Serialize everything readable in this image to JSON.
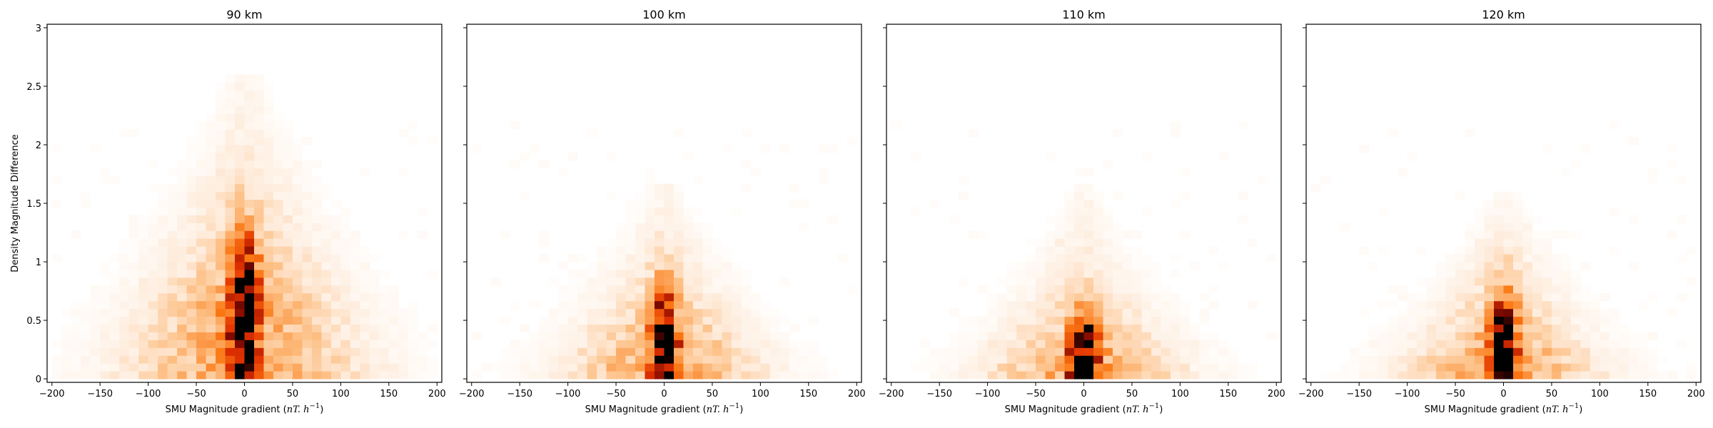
{
  "chart_data": [
    {
      "type": "heatmap",
      "title": "90 km",
      "xlabel": "SMU Magnitude gradient (nT. h⁻¹)",
      "xlabel_main": "SMU Magnitude gradient (",
      "xlabel_math": "nT. h",
      "xlabel_sup": "−1",
      "xlabel_close": ")",
      "ylabel": "Density Magnitude Difference",
      "xlim": [
        -205,
        205
      ],
      "ylim": [
        -0.03,
        3.03
      ],
      "xticks": [
        -200,
        -150,
        -100,
        -50,
        0,
        50,
        100,
        150,
        200
      ],
      "yticks": [
        0.0,
        0.5,
        1.0,
        1.5,
        2.0,
        2.5,
        3.0
      ],
      "ytick_labels_visible": true,
      "colormap": "Oranges-Reds-Black",
      "bins": {
        "x_min": -200,
        "x_max": 200,
        "nx": 40,
        "y_min": 0,
        "y_max": 3,
        "ny": 45
      },
      "distribution": {
        "x_center": 0,
        "core_width": 10,
        "spread_width": 55,
        "y_peak": 0.55,
        "y_spread": 0.45,
        "y_tail": 2.6,
        "intensity": 1.0,
        "seed": 11
      }
    },
    {
      "type": "heatmap",
      "title": "100 km",
      "xlabel": "SMU Magnitude gradient (nT. h⁻¹)",
      "xlabel_main": "SMU Magnitude gradient (",
      "xlabel_math": "nT. h",
      "xlabel_sup": "−1",
      "xlabel_close": ")",
      "ylabel": "",
      "xlim": [
        -205,
        205
      ],
      "ylim": [
        -0.03,
        3.03
      ],
      "xticks": [
        -200,
        -150,
        -100,
        -50,
        0,
        50,
        100,
        150,
        200
      ],
      "yticks": [
        0.0,
        0.5,
        1.0,
        1.5,
        2.0,
        2.5,
        3.0
      ],
      "ytick_labels_visible": false,
      "colormap": "Oranges-Reds-Black",
      "bins": {
        "x_min": -200,
        "x_max": 200,
        "nx": 40,
        "y_min": 0,
        "y_max": 3,
        "ny": 45
      },
      "distribution": {
        "x_center": 0,
        "core_width": 9,
        "spread_width": 45,
        "y_peak": 0.25,
        "y_spread": 0.35,
        "y_tail": 1.7,
        "intensity": 1.0,
        "seed": 23
      }
    },
    {
      "type": "heatmap",
      "title": "110 km",
      "xlabel": "SMU Magnitude gradient (nT. h⁻¹)",
      "xlabel_main": "SMU Magnitude gradient (",
      "xlabel_math": "nT. h",
      "xlabel_sup": "−1",
      "xlabel_close": ")",
      "ylabel": "",
      "xlim": [
        -205,
        205
      ],
      "ylim": [
        -0.03,
        3.03
      ],
      "xticks": [
        -200,
        -150,
        -100,
        -50,
        0,
        50,
        100,
        150,
        200
      ],
      "yticks": [
        0.0,
        0.5,
        1.0,
        1.5,
        2.0,
        2.5,
        3.0
      ],
      "ytick_labels_visible": false,
      "colormap": "Oranges-Reds-Black",
      "bins": {
        "x_min": -200,
        "x_max": 200,
        "nx": 40,
        "y_min": 0,
        "y_max": 3,
        "ny": 45
      },
      "distribution": {
        "x_center": 0,
        "core_width": 10,
        "spread_width": 45,
        "y_peak": 0.12,
        "y_spread": 0.3,
        "y_tail": 1.65,
        "intensity": 1.0,
        "seed": 37
      }
    },
    {
      "type": "heatmap",
      "title": "120 km",
      "xlabel": "SMU Magnitude gradient (nT. h⁻¹)",
      "xlabel_main": "SMU Magnitude gradient (",
      "xlabel_math": "nT. h",
      "xlabel_sup": "−1",
      "xlabel_close": ")",
      "ylabel": "",
      "xlim": [
        -205,
        205
      ],
      "ylim": [
        -0.03,
        3.03
      ],
      "xticks": [
        -200,
        -150,
        -100,
        -50,
        0,
        50,
        100,
        150,
        200
      ],
      "yticks": [
        0.0,
        0.5,
        1.0,
        1.5,
        2.0,
        2.5,
        3.0
      ],
      "ytick_labels_visible": false,
      "colormap": "Oranges-Reds-Black",
      "bins": {
        "x_min": -200,
        "x_max": 200,
        "nx": 40,
        "y_min": 0,
        "y_max": 3,
        "ny": 45
      },
      "distribution": {
        "x_center": 0,
        "core_width": 10,
        "spread_width": 45,
        "y_peak": 0.2,
        "y_spread": 0.35,
        "y_tail": 1.6,
        "intensity": 1.0,
        "seed": 53
      }
    }
  ]
}
